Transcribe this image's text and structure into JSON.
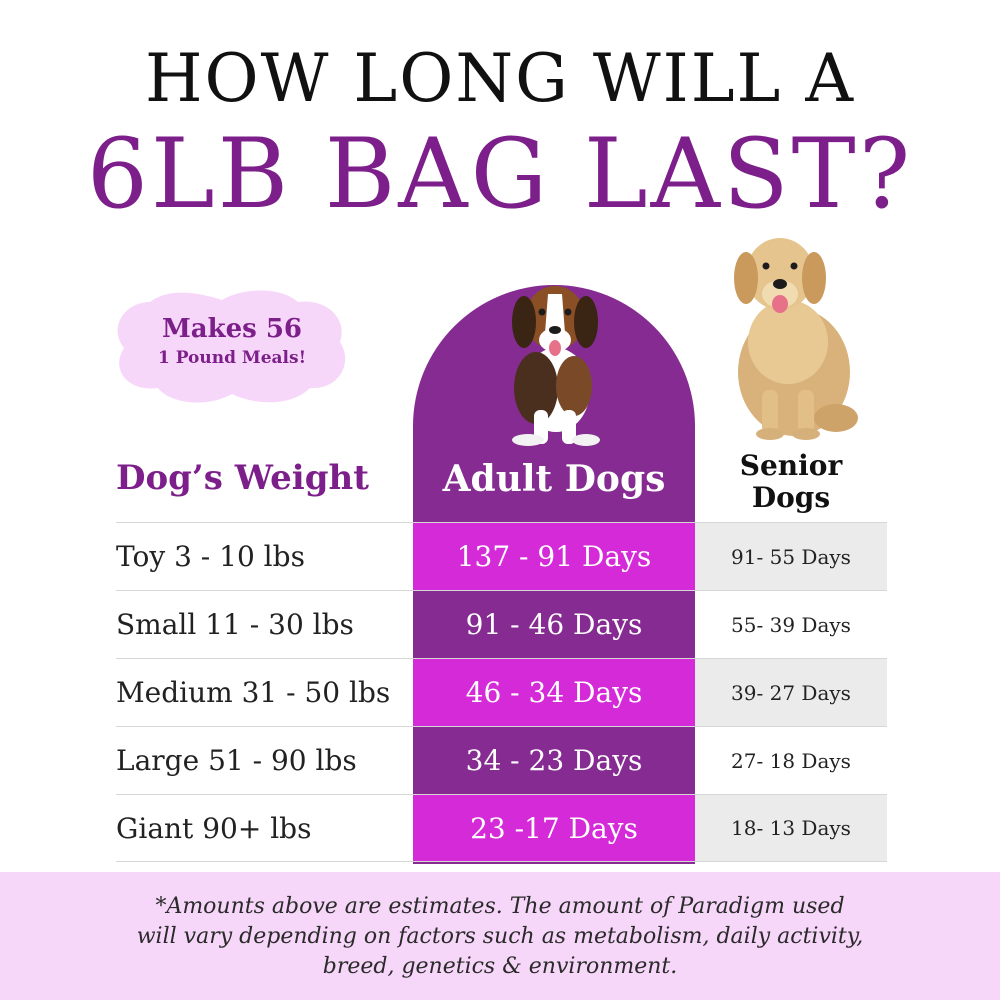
{
  "title": {
    "line1": "HOW LONG WILL A",
    "line2": "6LB BAG LAST?"
  },
  "badge": {
    "line1": "Makes 56",
    "line2": "1 Pound Meals!"
  },
  "table": {
    "headers": {
      "weight": "Dog’s Weight",
      "adult": "Adult Dogs",
      "senior_line1": "Senior",
      "senior_line2": "Dogs"
    },
    "rows": [
      {
        "weight": "Toy 3 - 10 lbs",
        "adult": "137 - 91 Days",
        "senior": "91- 55 Days"
      },
      {
        "weight": "Small 11 - 30 lbs",
        "adult": "91 - 46 Days",
        "senior": "55- 39 Days"
      },
      {
        "weight": "Medium 31 - 50 lbs",
        "adult": "46 - 34 Days",
        "senior": "39- 27 Days"
      },
      {
        "weight": "Large 51 - 90 lbs",
        "adult": "34 - 23 Days",
        "senior": "27- 18 Days"
      },
      {
        "weight": "Giant 90+ lbs",
        "adult": "23 -17 Days",
        "senior": "18- 13 Days"
      }
    ]
  },
  "footer": {
    "line1": "*Amounts above are estimates. The amount of Paradigm used",
    "line2": "will vary depending on factors such as metabolism, daily activity,",
    "line3": "breed, genetics & environment."
  },
  "colors": {
    "brand_purple": "#7d1f8a",
    "adult_dark": "#852b91",
    "adult_bright": "#d42ad8",
    "badge_pink": "#f7d7f9",
    "senior_gray": "#ebebeb"
  },
  "images": {
    "adult_dog": "beagle-puppy-image",
    "senior_dog": "golden-retriever-image"
  }
}
